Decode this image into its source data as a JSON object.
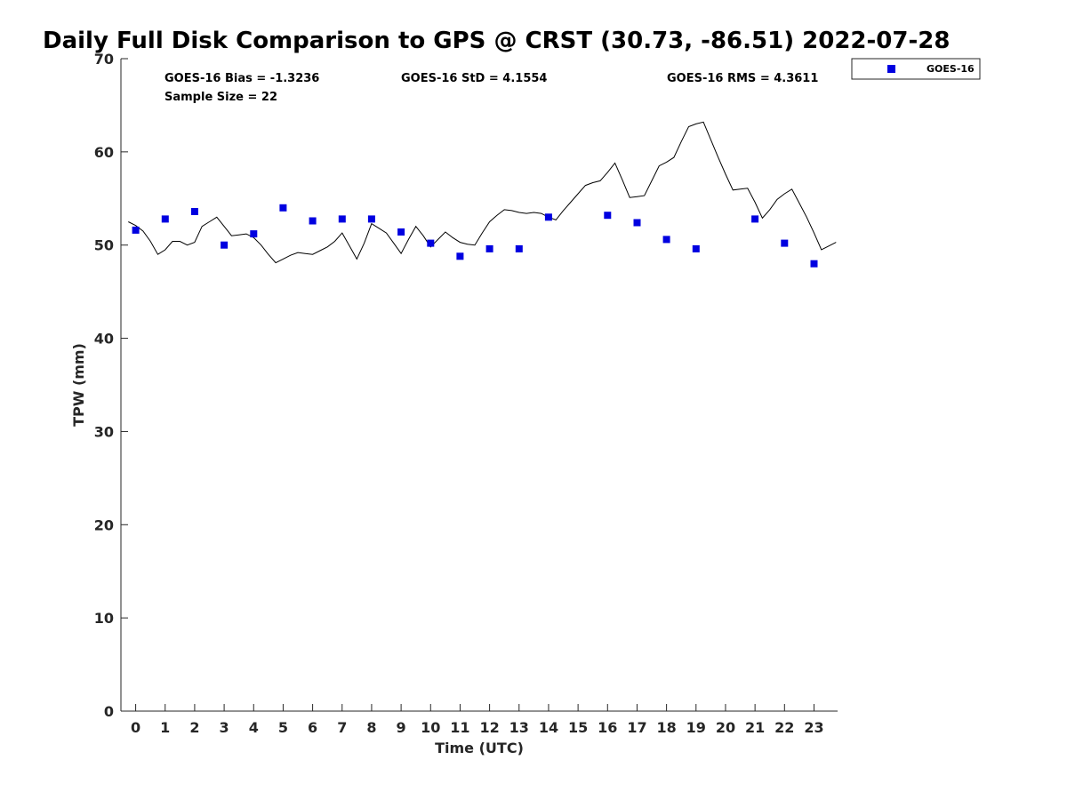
{
  "chart_data": {
    "type": "scatter",
    "title": "Daily Full Disk Comparison to GPS @ CRST (30.73, -86.51) 2022-07-28",
    "xlabel": "Time (UTC)",
    "ylabel": "TPW (mm)",
    "xlim": [
      -0.5,
      23.8
    ],
    "ylim": [
      0,
      70
    ],
    "xticks": [
      0,
      1,
      2,
      3,
      4,
      5,
      6,
      7,
      8,
      9,
      10,
      11,
      12,
      13,
      14,
      15,
      16,
      17,
      18,
      19,
      20,
      21,
      22,
      23
    ],
    "yticks": [
      0,
      10,
      20,
      30,
      40,
      50,
      60,
      70
    ],
    "grid": false,
    "legend_position": "top-right",
    "stats": {
      "bias": "GOES-16 Bias = -1.3236",
      "std": "GOES-16 StD = 4.1554",
      "rms": "GOES-16 RMS = 4.3611",
      "sample_size": "Sample Size = 22"
    },
    "series": [
      {
        "name": "GOES-16",
        "type": "scatter",
        "color": "#0000e0",
        "marker": "square",
        "x": [
          0,
          1,
          2,
          3,
          4,
          5,
          6,
          7,
          8,
          9,
          10,
          11,
          12,
          13,
          14,
          16,
          17,
          18,
          19,
          21,
          22,
          23
        ],
        "y": [
          51.6,
          52.8,
          53.6,
          50.0,
          51.2,
          54.0,
          52.6,
          52.8,
          52.8,
          51.4,
          50.2,
          48.8,
          49.6,
          49.6,
          53.0,
          53.2,
          52.4,
          50.6,
          49.6,
          52.8,
          50.2,
          48.0
        ]
      },
      {
        "type": "line",
        "color": "#000000",
        "x": [
          -0.25,
          0.0,
          0.25,
          0.5,
          0.75,
          1.0,
          1.25,
          1.5,
          1.75,
          2.0,
          2.25,
          2.5,
          2.75,
          3.0,
          3.25,
          3.5,
          3.75,
          4.0,
          4.25,
          4.5,
          4.75,
          5.0,
          5.25,
          5.5,
          5.75,
          6.0,
          6.25,
          6.5,
          6.75,
          7.0,
          7.25,
          7.5,
          7.75,
          8.0,
          8.25,
          8.5,
          8.75,
          9.0,
          9.25,
          9.5,
          9.75,
          10.0,
          10.25,
          10.5,
          10.75,
          11.0,
          11.25,
          11.5,
          11.75,
          12.0,
          12.25,
          12.5,
          12.75,
          13.0,
          13.25,
          13.5,
          13.75,
          14.0,
          14.25,
          14.5,
          14.75,
          15.0,
          15.25,
          15.5,
          15.75,
          16.0,
          16.25,
          16.5,
          16.75,
          17.0,
          17.25,
          17.5,
          17.75,
          18.0,
          18.25,
          18.5,
          18.75,
          19.0,
          19.25,
          19.5,
          19.75,
          20.0,
          20.25,
          20.5,
          20.75,
          21.0,
          21.25,
          21.5,
          21.75,
          22.0,
          22.25,
          22.5,
          22.75,
          23.0,
          23.25,
          23.5,
          23.75
        ],
        "y": [
          52.5,
          52.1,
          51.5,
          50.4,
          49.0,
          49.5,
          50.4,
          50.4,
          50.0,
          50.3,
          52.0,
          52.5,
          53.0,
          52.0,
          51.0,
          51.1,
          51.2,
          50.8,
          50.0,
          49.0,
          48.1,
          48.5,
          48.9,
          49.2,
          49.1,
          49.0,
          49.4,
          49.8,
          50.4,
          51.3,
          49.9,
          48.5,
          50.2,
          52.3,
          51.8,
          51.3,
          50.2,
          49.1,
          50.6,
          52.0,
          51.0,
          49.8,
          50.6,
          51.4,
          50.8,
          50.3,
          50.1,
          50.0,
          51.3,
          52.5,
          53.2,
          53.8,
          53.7,
          53.5,
          53.4,
          53.5,
          53.4,
          53.0,
          52.7,
          53.7,
          54.6,
          55.5,
          56.4,
          56.7,
          56.9,
          57.8,
          58.8,
          57.0,
          55.1,
          55.2,
          55.3,
          56.9,
          58.5,
          58.9,
          59.4,
          61.1,
          62.7,
          63.0,
          63.2,
          61.3,
          59.4,
          57.6,
          55.9,
          56.0,
          56.1,
          54.6,
          52.9,
          53.8,
          54.9,
          55.5,
          56.0,
          54.5,
          53.0,
          51.3,
          49.5,
          49.9,
          50.3
        ]
      }
    ]
  }
}
